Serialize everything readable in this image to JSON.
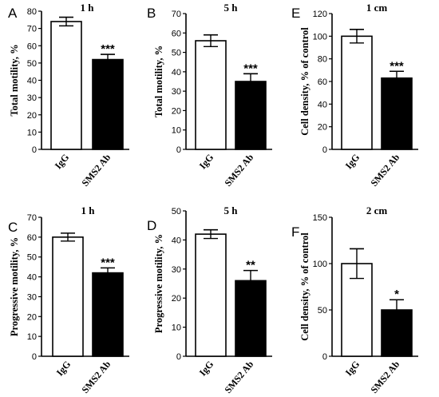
{
  "chart_data": [
    {
      "type": "bar",
      "panel": "A",
      "title": "1 h",
      "ylabel": "Total motility, %",
      "categories": [
        "IgG",
        "SMS2 Ab"
      ],
      "values": [
        74,
        52
      ],
      "errors": [
        2.5,
        3
      ],
      "significance": [
        "",
        "***"
      ],
      "ylim": [
        0,
        80
      ],
      "yticks": [
        0,
        10,
        20,
        30,
        40,
        50,
        60,
        70,
        80
      ],
      "colors": [
        "#ffffff",
        "#000000"
      ]
    },
    {
      "type": "bar",
      "panel": "B",
      "title": "5 h",
      "ylabel": "Total motility, %",
      "categories": [
        "IgG",
        "SMS2 Ab"
      ],
      "values": [
        56,
        35
      ],
      "errors": [
        3,
        4
      ],
      "significance": [
        "",
        "***"
      ],
      "ylim": [
        0,
        70
      ],
      "yticks": [
        0,
        10,
        20,
        30,
        40,
        50,
        60,
        70
      ],
      "colors": [
        "#ffffff",
        "#000000"
      ]
    },
    {
      "type": "bar",
      "panel": "E",
      "title": "1 cm",
      "ylabel": "Cell density, % of control",
      "categories": [
        "IgG",
        "SMS2 Ab"
      ],
      "values": [
        100,
        63
      ],
      "errors": [
        6,
        6
      ],
      "significance": [
        "",
        "***"
      ],
      "ylim": [
        0,
        120
      ],
      "yticks": [
        0,
        20,
        40,
        60,
        80,
        100,
        120
      ],
      "colors": [
        "#ffffff",
        "#000000"
      ]
    },
    {
      "type": "bar",
      "panel": "C",
      "title": "1 h",
      "ylabel": "Progressive motility, %",
      "categories": [
        "IgG",
        "SMS2 Ab"
      ],
      "values": [
        60,
        42
      ],
      "errors": [
        2,
        2.5
      ],
      "significance": [
        "",
        "***"
      ],
      "ylim": [
        0,
        70
      ],
      "yticks": [
        0,
        10,
        20,
        30,
        40,
        50,
        60,
        70
      ],
      "colors": [
        "#ffffff",
        "#000000"
      ]
    },
    {
      "type": "bar",
      "panel": "D",
      "title": "5 h",
      "ylabel": "Progressive motility, %",
      "categories": [
        "IgG",
        "SMS2 Ab"
      ],
      "values": [
        42,
        26
      ],
      "errors": [
        1.5,
        3.5
      ],
      "significance": [
        "",
        "**"
      ],
      "ylim": [
        0,
        50
      ],
      "yticks": [
        0,
        10,
        20,
        30,
        40,
        50
      ],
      "colors": [
        "#ffffff",
        "#000000"
      ]
    },
    {
      "type": "bar",
      "panel": "F",
      "title": "2 cm",
      "ylabel": "Cell density, % of control",
      "categories": [
        "IgG",
        "SMS2 Ab"
      ],
      "values": [
        100,
        50
      ],
      "errors": [
        16,
        11
      ],
      "significance": [
        "",
        "*"
      ],
      "ylim": [
        0,
        150
      ],
      "yticks": [
        0,
        50,
        100,
        150
      ],
      "colors": [
        "#ffffff",
        "#000000"
      ]
    }
  ]
}
